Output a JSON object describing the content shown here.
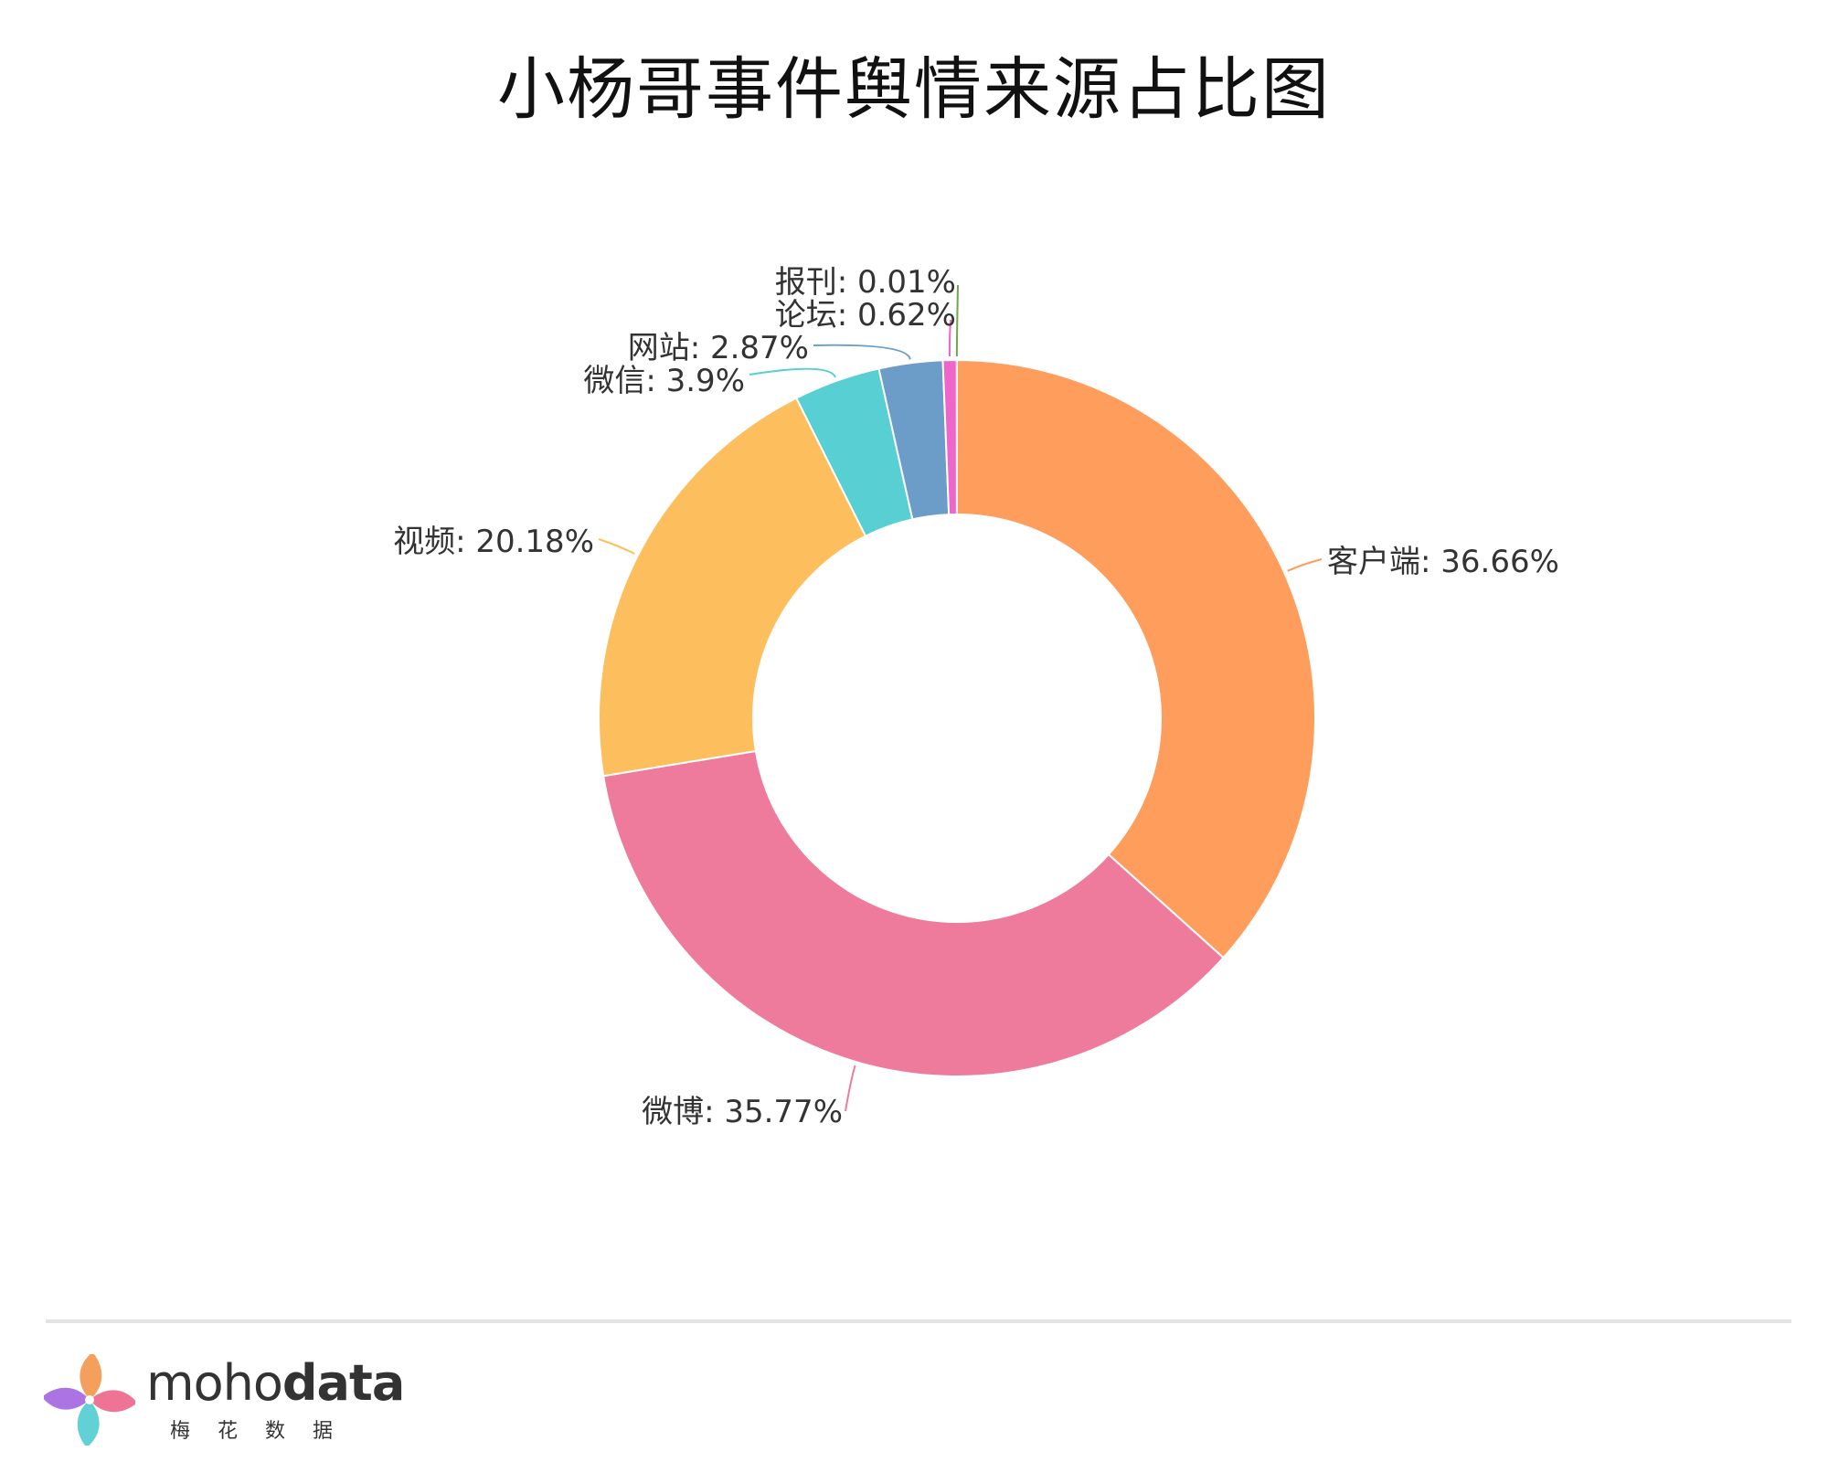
{
  "title": "小杨哥事件舆情来源占比图",
  "chart_data": {
    "type": "pie",
    "variant": "donut",
    "title": "小杨哥事件舆情来源占比图",
    "slices": [
      {
        "name": "客户端",
        "value": 36.66,
        "label": "客户端: 36.66%",
        "color": "#FF9D5C"
      },
      {
        "name": "微博",
        "value": 35.77,
        "label": "微博: 35.77%",
        "color": "#EE7B9B"
      },
      {
        "name": "视频",
        "value": 20.18,
        "label": "视频: 20.18%",
        "color": "#FDBF5E"
      },
      {
        "name": "微信",
        "value": 3.9,
        "label": "微信: 3.9%",
        "color": "#58CFD3"
      },
      {
        "name": "网站",
        "value": 2.87,
        "label": "网站: 2.87%",
        "color": "#6B9DC8"
      },
      {
        "name": "论坛",
        "value": 0.62,
        "label": "论坛: 0.62%",
        "color": "#EE66C9"
      },
      {
        "name": "报刊",
        "value": 0.01,
        "label": "报刊: 0.01%",
        "color": "#6FA64E"
      }
    ]
  },
  "footer": {
    "brand_light": "moho",
    "brand_bold": "data",
    "brand_sub": "梅花数据",
    "logo_colors": [
      "#F39A52",
      "#EE6B8F",
      "#58CFD3",
      "#A86BE0"
    ]
  }
}
